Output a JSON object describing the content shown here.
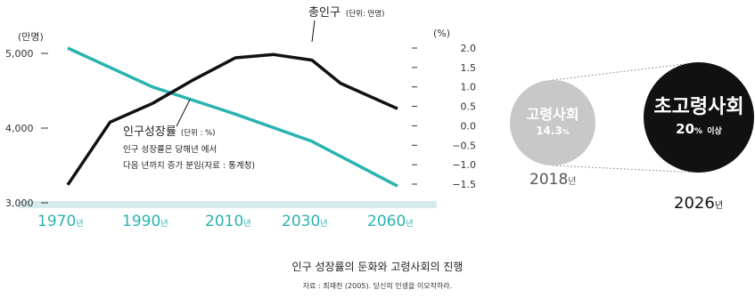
{
  "chart_data": {
    "type": "line",
    "x": [
      1970,
      1980,
      1990,
      2000,
      2010,
      2020,
      2030,
      2040,
      2060
    ],
    "x_tick_labels": [
      {
        "year": "1970",
        "suffix": "년"
      },
      {
        "year": "1990",
        "suffix": "년"
      },
      {
        "year": "2010",
        "suffix": "년"
      },
      {
        "year": "2030",
        "suffix": "년"
      },
      {
        "year": "2060",
        "suffix": "년"
      }
    ],
    "x_tick_values": [
      1970,
      1990,
      2010,
      2030,
      2060
    ],
    "left_axis": {
      "unit_label": "(만명)",
      "ticks": [
        "5,000",
        "4,000",
        "3,000"
      ],
      "tick_values": [
        5000,
        4000,
        3000
      ],
      "range": [
        3000,
        5200
      ]
    },
    "right_axis": {
      "unit_label": "(%)",
      "ticks": [
        "2.0",
        "1.5",
        "1.0",
        "0.5",
        "0.0",
        "−0.5",
        "−1.0",
        "−1.5"
      ],
      "tick_values": [
        2.0,
        1.5,
        1.0,
        0.5,
        0.0,
        -0.5,
        -1.0,
        -1.5
      ],
      "range": [
        -1.82,
        2.02
      ]
    },
    "series": [
      {
        "name": "총인구",
        "unit_note": "(단위: 만명)",
        "axis": "left",
        "color": "#111111",
        "x": [
          1970,
          1980,
          1990,
          2000,
          2010,
          2020,
          2030,
          2040,
          2060
        ],
        "values": [
          3240,
          4080,
          4330,
          4650,
          4940,
          4985,
          4910,
          4600,
          4260
        ]
      },
      {
        "name": "인구성장률",
        "unit_note": "(단위 : %)",
        "axis": "right",
        "color": "#2bb3b0",
        "x": [
          1970,
          1990,
          2010,
          2030,
          2060
        ],
        "values": [
          2.0,
          1.0,
          0.3,
          -0.4,
          -1.55
        ]
      }
    ],
    "annotations": [
      "인구 성장률은 당해년 에서",
      "다음 년까지 증가 분임(자료 : 통계청)"
    ]
  },
  "caption": {
    "title": "인구 성장률의 둔화와 고령사회의 진행",
    "source": "자료 : 최재천 (2005). 당신의 인생을 이모작하라."
  },
  "bubbles": {
    "aging": {
      "name": "고령사회",
      "value": "14.3",
      "value_unit": "%",
      "year": "2018",
      "year_suffix": "년"
    },
    "super_aging": {
      "name": "초고령사회",
      "value": "20",
      "value_unit": "%",
      "value_tail": "이상",
      "year": "2026",
      "year_suffix": "년"
    }
  },
  "colors": {
    "teal": "#2bb3b0",
    "black": "#111111",
    "grey": "#c8c8c8",
    "baseline": "#d6ecec"
  }
}
